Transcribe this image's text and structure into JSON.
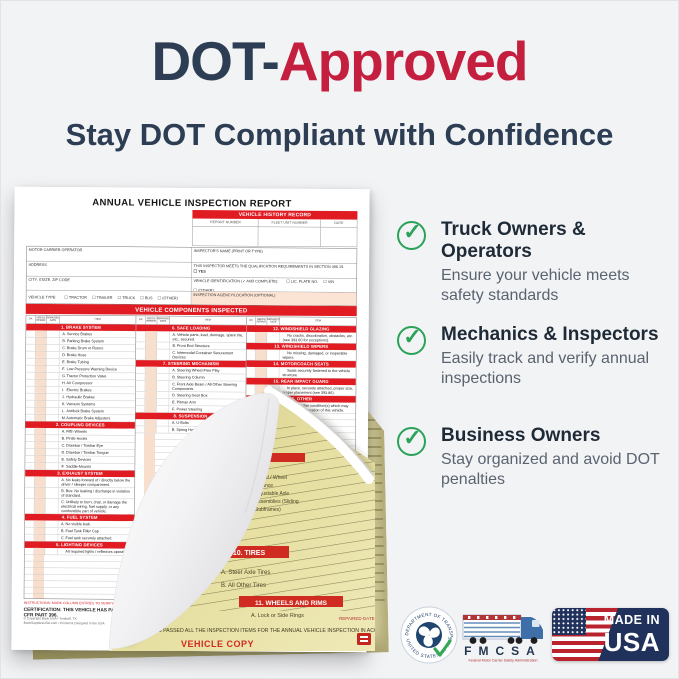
{
  "page": {
    "background": "#f2f3f5",
    "navy": "#2d3e54",
    "red": "#c41f3e",
    "band_red": "#e11b22",
    "green": "#2aa258"
  },
  "header": {
    "title_prefix": "DOT-",
    "title_suffix": "Approved",
    "subtitle": "Stay DOT Compliant with Confidence"
  },
  "benefits": [
    {
      "title": "Truck Owners & Operators",
      "description": "Ensure your vehicle meets safety standards"
    },
    {
      "title": "Mechanics & Inspectors",
      "description": "Easily track and verify annual inspections"
    },
    {
      "title": "Business Owners",
      "description": "Stay organized and avoid DOT penalties"
    }
  ],
  "badges": {
    "dot_seal": {
      "top_text": "DEPARTMENT OF TRANSPORTATION",
      "bottom_text": "UNITED STATES OF AMERICA"
    },
    "fmcsa": {
      "letters": "FMCSA",
      "caption": "Federal Motor Carrier Safety Administration"
    },
    "made_in_usa": {
      "line1": "MADE IN",
      "line2": "USA"
    }
  },
  "form": {
    "title": "ANNUAL VEHICLE INSPECTION REPORT",
    "history": {
      "title": "VEHICLE HISTORY RECORD",
      "columns": [
        "REPORT NUMBER",
        "FLEET UNIT NUMBER",
        "DATE"
      ]
    },
    "fields": {
      "motor_carrier": "MOTOR CARRIER OPERATOR",
      "address": "ADDRESS",
      "city": "CITY, STATE, ZIP CODE",
      "vehicle_type_label": "VEHICLE TYPE:",
      "vehicle_types": [
        "TRACTOR",
        "TRAILER",
        "TRUCK",
        "BUS",
        "(OTHER)"
      ],
      "inspector_name": "INSPECTOR'S NAME (PRINT OR TYPE)",
      "qualification": "THIS INSPECTOR MEETS THE QUALIFICATION REQUIREMENTS IN SECTION 396.19.",
      "qualification_yes": "YES",
      "vehicle_id_label": "VEHICLE IDENTIFICATION (✓ AND COMPLETE):",
      "vehicle_ids": [
        "LIC. PLATE NO.",
        "VIN",
        "(OTHER)"
      ],
      "agency": "INSPECTION AGENCY/LOCATION (OPTIONAL)"
    },
    "components_banner": "VEHICLE COMPONENTS INSPECTED",
    "col_headers": {
      "ok": "OK",
      "needs_repair": "NEEDS REPAIR",
      "repaired_date": "REPAIRED DATE",
      "item": "ITEM"
    },
    "component_columns": [
      {
        "sections": [
          {
            "title": "1. BRAKE SYSTEM",
            "items": [
              {
                "letter": "A.",
                "text": "Service Brakes"
              },
              {
                "letter": "B.",
                "text": "Parking Brake System"
              },
              {
                "letter": "C.",
                "text": "Brake Drum or Rotors"
              },
              {
                "letter": "D.",
                "text": "Brake Hose"
              },
              {
                "letter": "E.",
                "text": "Brake Tubing"
              },
              {
                "letter": "F.",
                "text": "Low Pressure Warning Device"
              },
              {
                "letter": "G.",
                "text": "Tractor Protection Valve"
              },
              {
                "letter": "H.",
                "text": "Air Compressor"
              },
              {
                "letter": "I.",
                "text": "Electric Brakes"
              },
              {
                "letter": "J.",
                "text": "Hydraulic Brakes"
              },
              {
                "letter": "K.",
                "text": "Vacuum Systems"
              },
              {
                "letter": "L.",
                "text": "Antilock Brake System"
              },
              {
                "letter": "M.",
                "text": "Automatic Brake Adjusters"
              }
            ]
          },
          {
            "title": "2. COUPLING DEVICES",
            "items": [
              {
                "letter": "A.",
                "text": "Fifth Wheels"
              },
              {
                "letter": "B.",
                "text": "Pintle Hooks"
              },
              {
                "letter": "C.",
                "text": "Drawbar / Towbar Eye"
              },
              {
                "letter": "D.",
                "text": "Drawbar / Towbar Tongue"
              },
              {
                "letter": "E.",
                "text": "Safety Devices"
              },
              {
                "letter": "F.",
                "text": "Saddle-Mounts"
              }
            ]
          },
          {
            "title": "3. EXHAUST SYSTEM",
            "items": [
              {
                "letter": "A.",
                "text": "No leaks forward of / directly below the driver / sleeper compartment."
              },
              {
                "letter": "B.",
                "text": "Bus: No leaking / discharge in violation of standard."
              },
              {
                "letter": "C.",
                "text": "Unlikely to burn, char, or damage the electrical wiring, fuel supply, or any combustible part of vehicle."
              }
            ]
          },
          {
            "title": "4. FUEL SYSTEM",
            "items": [
              {
                "letter": "A.",
                "text": "No visible leak."
              },
              {
                "letter": "B.",
                "text": "Fuel Tank Filler Cap"
              },
              {
                "letter": "C.",
                "text": "Fuel tank securely attached."
              }
            ]
          },
          {
            "title": "5. LIGHTING DEVICES",
            "items": [
              {
                "letter": "",
                "text": "All required lights / reflectors operable."
              }
            ]
          }
        ]
      },
      {
        "sections": [
          {
            "title": "6. SAFE LOADING",
            "items": [
              {
                "letter": "A.",
                "text": "Vehicle parts, load, dunnage, spare tire, etc., secured."
              },
              {
                "letter": "B.",
                "text": "Front End Structure"
              },
              {
                "letter": "C.",
                "text": "Intermodal Container Securement Devices"
              }
            ]
          },
          {
            "title": "7. STEERING MECHANISM",
            "items": [
              {
                "letter": "A.",
                "text": "Steering Wheel Free Play"
              },
              {
                "letter": "B.",
                "text": "Steering Column"
              },
              {
                "letter": "C.",
                "text": "Front Axle Beam / All Other Steering Components"
              },
              {
                "letter": "D.",
                "text": "Steering Gear Box"
              },
              {
                "letter": "E.",
                "text": "Pitman Arm"
              },
              {
                "letter": "F.",
                "text": "Power Steering"
              }
            ]
          },
          {
            "title": "8. SUSPENSION",
            "items": [
              {
                "letter": "A.",
                "text": "U-Bolts"
              },
              {
                "letter": "B.",
                "text": "Spring Hangers"
              }
            ]
          }
        ]
      },
      {
        "sections": [
          {
            "title": "12. WINDSHIELD GLAZING",
            "items": [
              {
                "letter": "",
                "text": "No cracks, discoloration, obstacles, etc. (see 393.60 for exceptions)."
              }
            ]
          },
          {
            "title": "13. WINDSHIELD WIPERS",
            "items": [
              {
                "letter": "",
                "text": "No missing, damaged, or inoperable wipers."
              }
            ]
          },
          {
            "title": "14. MOTORCOACH SEATS",
            "items": [
              {
                "letter": "",
                "text": "Seats securely fastened to the vehicle structure."
              }
            ]
          },
          {
            "title": "15. REAR IMPACT GUARD",
            "items": [
              {
                "letter": "",
                "text": "In place, securely attached, proper size, proper placement (see 393.86)."
              }
            ]
          },
          {
            "title": "16. OTHER",
            "items": [
              {
                "letter": "",
                "text": "List any other condition(s) which may prevent safe operation of this vehicle."
              }
            ]
          }
        ]
      }
    ],
    "instructions": "INSTRUCTIONS: MARK COLUMN ENTRIES TO VERIFY INSPECTION: ✓ OK, X NEEDS REPAIR, NA IF VEHICLE DID NOT APPLY",
    "repaired_date_note": "REPAIRED DATE",
    "certification": "CERTIFICATION: THIS VEHICLE HAS PASSED ALL THE INSPECTION ITEMS FOR THE ANNUAL VEHICLE INSPECTION IN ACCORDANCE WITH 49 CFR PART 396.",
    "copyright_line1": "© Copyright Book USA • Tomball, TX",
    "copyright_line2": "BookSuppliesUSA.com • Printed & Designed in the USA"
  },
  "yellow_copy": {
    "suspension_fragments": [
      "Travel / Wheel",
      "Balance",
      "Adjustable Axle",
      "Assemblies (Sliding",
      "Subframes)"
    ],
    "tires_band": "10. TIRES",
    "tires_item_a": "A.  Steer Axle Tires",
    "tires_item_b": "B.  All Other Tires",
    "wheels_band": "11. WHEELS AND RIMS",
    "wheels_item": "A.  Lock or Side Rings",
    "repaired_date": "REPAIRED DATE",
    "certification": "HAS PASSED ALL THE INSPECTION ITEMS FOR THE ANNUAL VEHICLE INSPECTION IN ACCORDANCE WITH 49 CFR PART 396.",
    "copy_label": "VEHICLE COPY"
  }
}
